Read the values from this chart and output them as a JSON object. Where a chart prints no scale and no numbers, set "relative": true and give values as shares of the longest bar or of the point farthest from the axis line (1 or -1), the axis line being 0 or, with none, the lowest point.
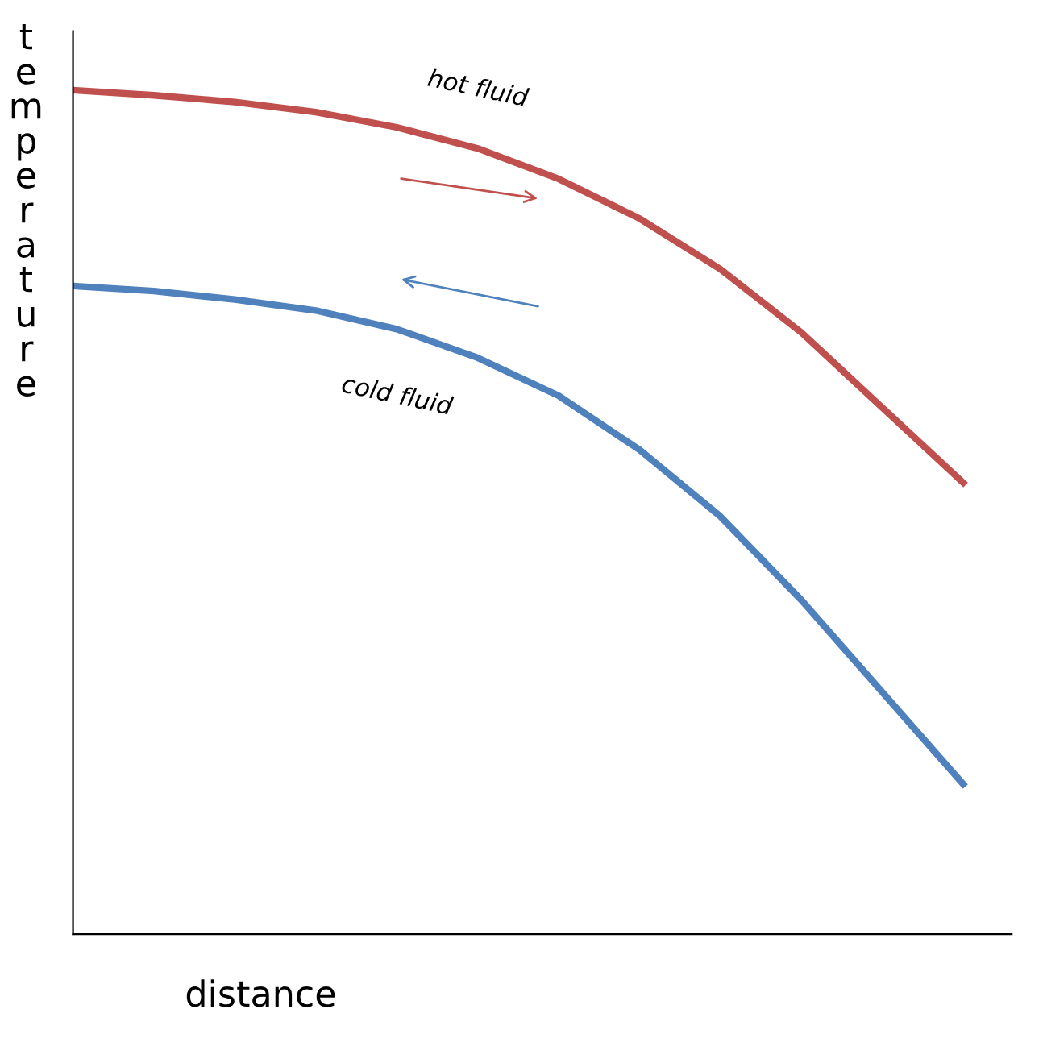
{
  "chart_data": {
    "type": "line",
    "relative": true,
    "xlabel": "distance",
    "ylabel": "temperature",
    "categories": [
      null,
      null,
      null,
      null,
      null,
      null,
      null,
      null,
      null,
      null,
      null,
      null
    ],
    "series": [
      {
        "name": "hot fluid",
        "color": "#c0504d",
        "values": [
          1.0,
          0.994,
          0.986,
          0.974,
          0.956,
          0.931,
          0.895,
          0.848,
          0.788,
          0.713,
          0.624,
          0.535
        ]
      },
      {
        "name": "cold fluid",
        "color": "#4f81bd",
        "values": [
          0.768,
          0.762,
          0.752,
          0.739,
          0.717,
          0.683,
          0.638,
          0.574,
          0.495,
          0.396,
          0.287,
          0.178
        ]
      }
    ],
    "legend": false,
    "marker": "none",
    "line_style": "solid"
  }
}
